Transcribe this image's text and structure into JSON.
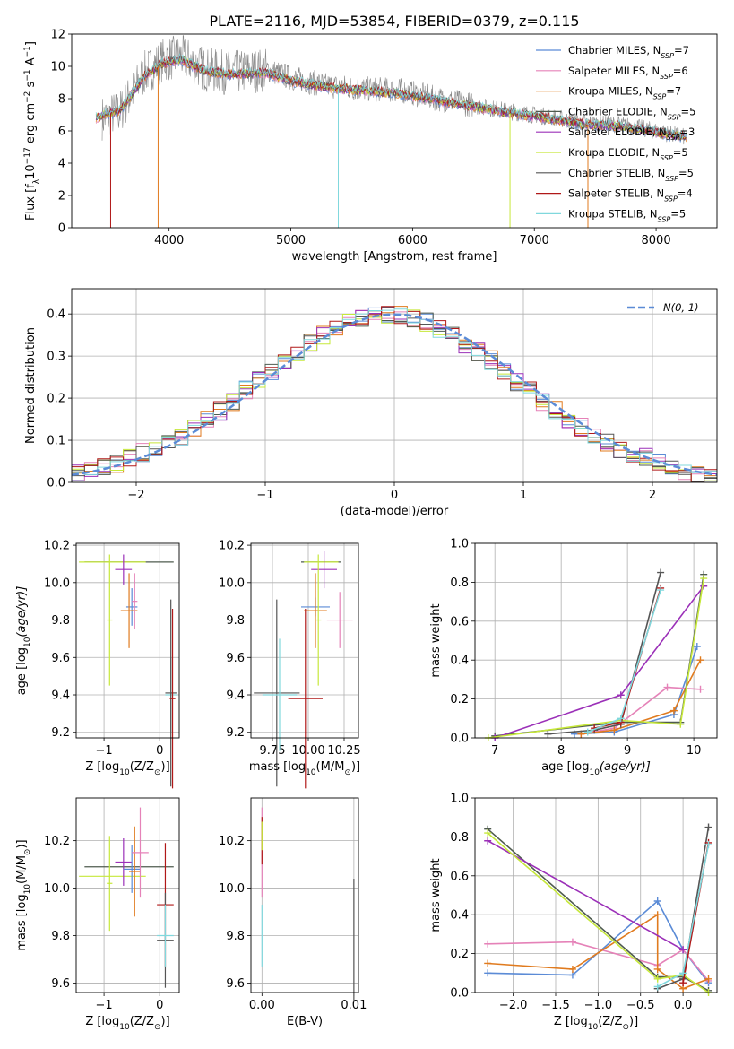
{
  "figure_title": "PLATE=2116, MJD=53854, FIBERID=0379, z=0.115",
  "colors": {
    "Chabrier MILES": "#5b8bd6",
    "Salpeter MILES": "#e582b8",
    "Kroupa MILES": "#e07b1f",
    "Chabrier ELODIE": "#4f5b4f",
    "Salpeter ELODIE": "#9b30b8",
    "Kroupa ELODIE": "#c6e83a",
    "Chabrier STELIB": "#555555",
    "Salpeter STELIB": "#b01818",
    "Kroupa STELIB": "#80d8dd"
  },
  "chart_data": [
    {
      "id": "spectrum",
      "type": "line",
      "xlabel": "wavelength [Angstrom, rest frame]",
      "ylabel": "Flux [f_λ10^-17 erg cm^-2 s^-1 A^-1]",
      "xlim": [
        3200,
        8500
      ],
      "ylim": [
        0,
        12
      ],
      "xticks": [
        4000,
        5000,
        6000,
        7000,
        8000
      ],
      "yticks": [
        0,
        2,
        4,
        6,
        8,
        10,
        12
      ],
      "legend_position": "upper-right",
      "observed_spectrum_color": "#888888",
      "observed_spectrum": {
        "x": [
          3450,
          3600,
          3800,
          3950,
          4100,
          4300,
          4500,
          4800,
          5000,
          5300,
          5600,
          5900,
          6200,
          6500,
          6800,
          7100,
          7400,
          7700,
          8000,
          8250
        ],
        "y": [
          6.8,
          7.2,
          9.6,
          10.4,
          10.6,
          9.8,
          9.6,
          9.8,
          9.3,
          8.8,
          8.6,
          8.5,
          8.0,
          7.6,
          7.2,
          6.9,
          6.5,
          6.4,
          6.0,
          5.6
        ]
      },
      "series": [
        {
          "name": "Chabrier MILES",
          "nssp": "7"
        },
        {
          "name": "Salpeter MILES",
          "nssp": "6"
        },
        {
          "name": "Kroupa MILES",
          "nssp": "7"
        },
        {
          "name": "Chabrier ELODIE",
          "nssp": "5"
        },
        {
          "name": "Salpeter ELODIE",
          "nssp": "3"
        },
        {
          "name": "Kroupa ELODIE",
          "nssp": "5"
        },
        {
          "name": "Chabrier STELIB",
          "nssp": "5"
        },
        {
          "name": "Salpeter STELIB",
          "nssp": "4"
        },
        {
          "name": "Kroupa STELIB",
          "nssp": "5"
        }
      ],
      "model_curve": {
        "x": [
          3400,
          3600,
          3800,
          3950,
          4100,
          4300,
          4500,
          4800,
          5000,
          5300,
          5600,
          5900,
          6200,
          6500,
          6800,
          7100,
          7400,
          7700,
          8000,
          8250
        ],
        "y": [
          6.8,
          7.3,
          9.4,
          10.2,
          10.4,
          9.7,
          9.5,
          9.6,
          9.1,
          8.7,
          8.5,
          8.3,
          7.9,
          7.5,
          7.1,
          6.8,
          6.4,
          6.3,
          5.9,
          5.6
        ]
      },
      "drop_wavelengths": [
        {
          "name": "Salpeter STELIB",
          "x": 3520
        },
        {
          "name": "Kroupa MILES",
          "x": 3910
        },
        {
          "name": "Kroupa STELIB",
          "x": 5390
        },
        {
          "name": "Kroupa ELODIE",
          "x": 6800
        },
        {
          "name": "Kroupa MILES",
          "x": 7440
        }
      ]
    },
    {
      "id": "residuals",
      "type": "line",
      "xlabel": "(data-model)/error",
      "ylabel": "Normed distribution",
      "xlim": [
        -2.5,
        2.5
      ],
      "ylim": [
        0,
        0.46
      ],
      "xticks": [
        -2,
        -1,
        0,
        1,
        2
      ],
      "yticks": [
        0.0,
        0.1,
        0.2,
        0.3,
        0.4
      ],
      "legend": "N(0, 1)",
      "legend_position": "upper-right",
      "gaussian_color": "#5b8bd6",
      "bin_edges_start": -2.5,
      "bin_width": 0.1,
      "histogram": [
        0.02,
        0.025,
        0.035,
        0.045,
        0.06,
        0.07,
        0.08,
        0.095,
        0.11,
        0.13,
        0.15,
        0.17,
        0.19,
        0.22,
        0.24,
        0.26,
        0.29,
        0.31,
        0.33,
        0.35,
        0.365,
        0.38,
        0.39,
        0.395,
        0.4,
        0.4,
        0.39,
        0.38,
        0.365,
        0.35,
        0.33,
        0.31,
        0.29,
        0.26,
        0.24,
        0.22,
        0.19,
        0.17,
        0.15,
        0.13,
        0.11,
        0.095,
        0.08,
        0.07,
        0.06,
        0.045,
        0.035,
        0.025,
        0.02,
        0.015
      ]
    },
    {
      "id": "age_vs_Z",
      "type": "scatter",
      "xlabel": "Z [log10(Z/Z⊙)]",
      "ylabel": "age [log10(age/yr)]",
      "xlim": [
        -1.5,
        0.35
      ],
      "ylim": [
        9.17,
        10.21
      ],
      "xticks": [
        -1,
        0
      ],
      "yticks": [
        9.2,
        9.4,
        9.6,
        9.8,
        10.0,
        10.2
      ],
      "points": [
        {
          "name": "Chabrier ELODIE",
          "x": -0.55,
          "xerr": 0.8,
          "y": 10.11,
          "yerr": 0.0
        },
        {
          "name": "Kroupa ELODIE",
          "x": -0.85,
          "xerr": 0.6,
          "y": 10.11,
          "yerr": 0.0
        },
        {
          "name": "Salpeter ELODIE",
          "x": -0.65,
          "xerr": 0.15,
          "y": 10.07,
          "yerr": 0.08
        },
        {
          "name": "Chabrier MILES",
          "x": -0.5,
          "xerr": 0.1,
          "y": 9.87,
          "yerr": 0.1
        },
        {
          "name": "Kroupa MILES",
          "x": -0.55,
          "xerr": 0.15,
          "y": 9.85,
          "yerr": 0.2
        },
        {
          "name": "Salpeter MILES",
          "x": -0.45,
          "xerr": 0.05,
          "y": 9.9,
          "yerr": 0.15
        },
        {
          "name": "Kroupa ELODIE",
          "x": -0.9,
          "xerr": 0.05,
          "y": 9.8,
          "yerr": 0.35
        },
        {
          "name": "Kroupa STELIB",
          "x": 0.2,
          "xerr": 0.1,
          "y": 9.4,
          "yerr": 0.2
        },
        {
          "name": "Chabrier STELIB",
          "x": 0.2,
          "xerr": 0.1,
          "y": 9.41,
          "yerr": 0.5
        },
        {
          "name": "Salpeter STELIB",
          "x": 0.23,
          "xerr": 0.05,
          "y": 9.38,
          "yerr": 0.48
        }
      ]
    },
    {
      "id": "age_vs_mass",
      "type": "scatter",
      "xlabel": "mass [log10(M/M⊙)]",
      "ylabel": "",
      "xlim": [
        9.6,
        10.35
      ],
      "ylim": [
        9.17,
        10.21
      ],
      "xticks": [
        9.75,
        10.0,
        10.25
      ],
      "xticklabels": [
        "9.75",
        "10.00",
        "10.25"
      ],
      "yticks": [
        9.2,
        9.4,
        9.6,
        9.8,
        10.0,
        10.2
      ],
      "points": [
        {
          "name": "Chabrier ELODIE",
          "x": 10.09,
          "xerr": 0.14,
          "y": 10.11,
          "yerr": 0.0
        },
        {
          "name": "Kroupa ELODIE",
          "x": 10.09,
          "xerr": 0.12,
          "y": 10.11,
          "yerr": 0.0
        },
        {
          "name": "Salpeter ELODIE",
          "x": 10.11,
          "xerr": 0.09,
          "y": 10.07,
          "yerr": 0.1
        },
        {
          "name": "Chabrier MILES",
          "x": 10.05,
          "xerr": 0.1,
          "y": 9.87,
          "yerr": 0.05
        },
        {
          "name": "Kroupa MILES",
          "x": 10.05,
          "xerr": 0.08,
          "y": 9.85,
          "yerr": 0.2
        },
        {
          "name": "Salpeter MILES",
          "x": 10.22,
          "xerr": 0.09,
          "y": 9.8,
          "yerr": 0.15
        },
        {
          "name": "Chabrier STELIB",
          "x": 9.78,
          "xerr": 0.16,
          "y": 9.41,
          "yerr": 0.5
        },
        {
          "name": "Salpeter STELIB",
          "x": 9.98,
          "xerr": 0.12,
          "y": 9.38,
          "yerr": 0.48
        },
        {
          "name": "Kroupa STELIB",
          "x": 9.8,
          "xerr": 0.12,
          "y": 9.4,
          "yerr": 0.3
        },
        {
          "name": "Kroupa ELODIE",
          "x": 10.07,
          "xerr": 0.02,
          "y": 9.8,
          "yerr": 0.35
        }
      ]
    },
    {
      "id": "weight_vs_age",
      "type": "line",
      "xlabel": "age [log10(age/yr)]",
      "ylabel": "mass weight",
      "xlim": [
        6.7,
        10.35
      ],
      "ylim": [
        0,
        1
      ],
      "xticks": [
        7,
        8,
        9,
        10
      ],
      "yticks": [
        0.0,
        0.2,
        0.4,
        0.6,
        0.8,
        1.0
      ],
      "series": [
        {
          "name": "Chabrier MILES",
          "x": [
            8.2,
            8.8,
            9.7,
            10.05
          ],
          "y": [
            0.02,
            0.03,
            0.12,
            0.47
          ]
        },
        {
          "name": "Salpeter MILES",
          "x": [
            8.3,
            8.8,
            9.6,
            10.1
          ],
          "y": [
            0.02,
            0.05,
            0.26,
            0.25
          ]
        },
        {
          "name": "Kroupa MILES",
          "x": [
            8.3,
            8.8,
            9.7,
            10.1
          ],
          "y": [
            0.02,
            0.04,
            0.14,
            0.4
          ]
        },
        {
          "name": "Chabrier ELODIE",
          "x": [
            7.0,
            8.9,
            9.8,
            10.15
          ],
          "y": [
            0.01,
            0.08,
            0.08,
            0.84
          ]
        },
        {
          "name": "Salpeter ELODIE",
          "x": [
            7.0,
            8.9,
            10.15
          ],
          "y": [
            0.0,
            0.22,
            0.78
          ]
        },
        {
          "name": "Kroupa ELODIE",
          "x": [
            6.9,
            8.9,
            9.8,
            10.15
          ],
          "y": [
            0.0,
            0.09,
            0.07,
            0.82
          ]
        },
        {
          "name": "Chabrier STELIB",
          "x": [
            7.8,
            8.5,
            8.9,
            9.5
          ],
          "y": [
            0.02,
            0.04,
            0.07,
            0.85
          ]
        },
        {
          "name": "Salpeter STELIB",
          "x": [
            8.5,
            8.9,
            9.5
          ],
          "y": [
            0.05,
            0.08,
            0.77
          ]
        },
        {
          "name": "Kroupa STELIB",
          "x": [
            8.4,
            8.9,
            9.5
          ],
          "y": [
            0.03,
            0.1,
            0.76
          ]
        }
      ]
    },
    {
      "id": "mass_vs_Z",
      "type": "scatter",
      "xlabel": "Z [log10(Z/Z⊙)]",
      "ylabel": "mass [log10(M/M⊙)]",
      "xlim": [
        -1.5,
        0.35
      ],
      "ylim": [
        9.56,
        10.38
      ],
      "xticks": [
        -1,
        0
      ],
      "yticks": [
        9.6,
        9.8,
        10.0,
        10.2
      ],
      "points": [
        {
          "name": "Chabrier ELODIE",
          "x": -0.55,
          "xerr": 0.8,
          "y": 10.09,
          "yerr": 0.0
        },
        {
          "name": "Kroupa ELODIE",
          "x": -0.85,
          "xerr": 0.6,
          "y": 10.05,
          "yerr": 0.0
        },
        {
          "name": "Salpeter ELODIE",
          "x": -0.65,
          "xerr": 0.15,
          "y": 10.11,
          "yerr": 0.1
        },
        {
          "name": "Chabrier MILES",
          "x": -0.5,
          "xerr": 0.15,
          "y": 10.08,
          "yerr": 0.1
        },
        {
          "name": "Kroupa MILES",
          "x": -0.45,
          "xerr": 0.1,
          "y": 10.07,
          "yerr": 0.19
        },
        {
          "name": "Salpeter MILES",
          "x": -0.35,
          "xerr": 0.15,
          "y": 10.15,
          "yerr": 0.19
        },
        {
          "name": "Kroupa ELODIE",
          "x": -0.9,
          "xerr": 0.05,
          "y": 10.02,
          "yerr": 0.2
        },
        {
          "name": "Salpeter STELIB",
          "x": 0.1,
          "xerr": 0.15,
          "y": 9.93,
          "yerr": 0.26
        },
        {
          "name": "Chabrier STELIB",
          "x": 0.1,
          "xerr": 0.15,
          "y": 9.78,
          "yerr": 0.2
        },
        {
          "name": "Kroupa STELIB",
          "x": 0.1,
          "xerr": 0.15,
          "y": 9.8,
          "yerr": 0.13
        }
      ]
    },
    {
      "id": "mass_vs_ebv",
      "type": "scatter",
      "xlabel": "E(B-V)",
      "ylabel": "",
      "xlim": [
        -0.0012,
        0.0105
      ],
      "ylim": [
        9.56,
        10.38
      ],
      "xticks": [
        0.0,
        0.01
      ],
      "xticklabels": [
        "0.00",
        "0.01"
      ],
      "yticks": [
        9.6,
        9.8,
        10.0,
        10.2
      ],
      "points": [
        {
          "name": "Salpeter MILES",
          "x": 0.0,
          "xerr": 0,
          "y": 10.15,
          "yerr": 0.19
        },
        {
          "name": "Salpeter STELIB",
          "x": 0.0,
          "xerr": 0,
          "y": 10.2,
          "yerr": 0.1
        },
        {
          "name": "Kroupa STELIB",
          "x": 0.0,
          "xerr": 0,
          "y": 9.8,
          "yerr": 0.13
        },
        {
          "name": "Kroupa ELODIE",
          "x": 0.0,
          "xerr": 0,
          "y": 10.22,
          "yerr": 0.06
        },
        {
          "name": "Chabrier STELIB",
          "x": 0.01,
          "xerr": 0,
          "y": 9.78,
          "yerr": 0.26
        }
      ]
    },
    {
      "id": "weight_vs_Z",
      "type": "line",
      "xlabel": "Z [log10(Z/Z⊙)]",
      "ylabel": "mass weight",
      "xlim": [
        -2.45,
        0.4
      ],
      "ylim": [
        0,
        1
      ],
      "xticks": [
        -2.0,
        -1.5,
        -1.0,
        -0.5,
        0.0
      ],
      "xticklabels": [
        "−2.0",
        "−1.5",
        "−1.0",
        "−0.5",
        "0.0"
      ],
      "yticks": [
        0.0,
        0.2,
        0.4,
        0.6,
        0.8,
        1.0
      ],
      "series": [
        {
          "name": "Chabrier MILES",
          "x": [
            -2.3,
            -1.3,
            -0.3,
            0.0,
            0.3
          ],
          "y": [
            0.1,
            0.09,
            0.47,
            0.22,
            0.05
          ]
        },
        {
          "name": "Salpeter MILES",
          "x": [
            -2.3,
            -1.3,
            -0.3,
            0.0,
            0.3
          ],
          "y": [
            0.25,
            0.26,
            0.14,
            0.22,
            0.06
          ]
        },
        {
          "name": "Kroupa MILES",
          "x": [
            -2.3,
            -1.3,
            -0.3,
            -0.3,
            0.0,
            0.3
          ],
          "y": [
            0.15,
            0.12,
            0.4,
            0.12,
            0.02,
            0.07
          ]
        },
        {
          "name": "Chabrier ELODIE",
          "x": [
            -2.3,
            -0.3,
            0.0,
            0.3
          ],
          "y": [
            0.84,
            0.08,
            0.08,
            0.01
          ]
        },
        {
          "name": "Salpeter ELODIE",
          "x": [
            -2.3,
            0.0
          ],
          "y": [
            0.78,
            0.22
          ]
        },
        {
          "name": "Kroupa ELODIE",
          "x": [
            -2.3,
            -0.3,
            0.0,
            0.3
          ],
          "y": [
            0.82,
            0.07,
            0.09,
            0.0
          ]
        },
        {
          "name": "Chabrier STELIB",
          "x": [
            -0.3,
            0.0,
            0.3
          ],
          "y": [
            0.02,
            0.07,
            0.85
          ]
        },
        {
          "name": "Salpeter STELIB",
          "x": [
            0.0,
            0.3
          ],
          "y": [
            0.05,
            0.77
          ]
        },
        {
          "name": "Kroupa STELIB",
          "x": [
            -0.3,
            0.0,
            0.3
          ],
          "y": [
            0.03,
            0.1,
            0.76
          ]
        }
      ]
    }
  ]
}
